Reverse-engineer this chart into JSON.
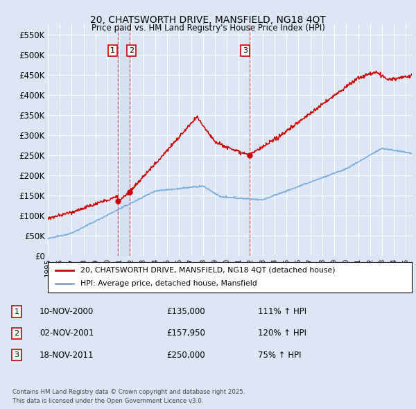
{
  "title": "20, CHATSWORTH DRIVE, MANSFIELD, NG18 4QT",
  "subtitle": "Price paid vs. HM Land Registry's House Price Index (HPI)",
  "background_color": "#dce6f5",
  "plot_bg_color": "#dce6f5",
  "ylim": [
    0,
    575000
  ],
  "yticks": [
    0,
    50000,
    100000,
    150000,
    200000,
    250000,
    300000,
    350000,
    400000,
    450000,
    500000,
    550000
  ],
  "ytick_labels": [
    "£0",
    "£50K",
    "£100K",
    "£150K",
    "£200K",
    "£250K",
    "£300K",
    "£350K",
    "£400K",
    "£450K",
    "£500K",
    "£550K"
  ],
  "red_line_color": "#cc0000",
  "blue_line_color": "#7aaddc",
  "red_line_label": "20, CHATSWORTH DRIVE, MANSFIELD, NG18 4QT (detached house)",
  "blue_line_label": "HPI: Average price, detached house, Mansfield",
  "transactions": [
    {
      "num": 1,
      "date": "10-NOV-2000",
      "price": "£135,000",
      "pct": "111% ↑ HPI",
      "x_year": 2000.86,
      "y_val": 135000
    },
    {
      "num": 2,
      "date": "02-NOV-2001",
      "price": "£157,950",
      "pct": "120% ↑ HPI",
      "x_year": 2001.84,
      "y_val": 157950
    },
    {
      "num": 3,
      "date": "18-NOV-2011",
      "price": "£250,000",
      "pct": "75% ↑ HPI",
      "x_year": 2011.88,
      "y_val": 250000
    }
  ],
  "footer_line1": "Contains HM Land Registry data © Crown copyright and database right 2025.",
  "footer_line2": "This data is licensed under the Open Government Licence v3.0.",
  "xmin": 1995.0,
  "xmax": 2025.5,
  "xtick_years": [
    1995,
    1996,
    1997,
    1998,
    1999,
    2000,
    2001,
    2002,
    2003,
    2004,
    2005,
    2006,
    2007,
    2008,
    2009,
    2010,
    2011,
    2012,
    2013,
    2014,
    2015,
    2016,
    2017,
    2018,
    2019,
    2020,
    2021,
    2022,
    2023,
    2024,
    2025
  ]
}
